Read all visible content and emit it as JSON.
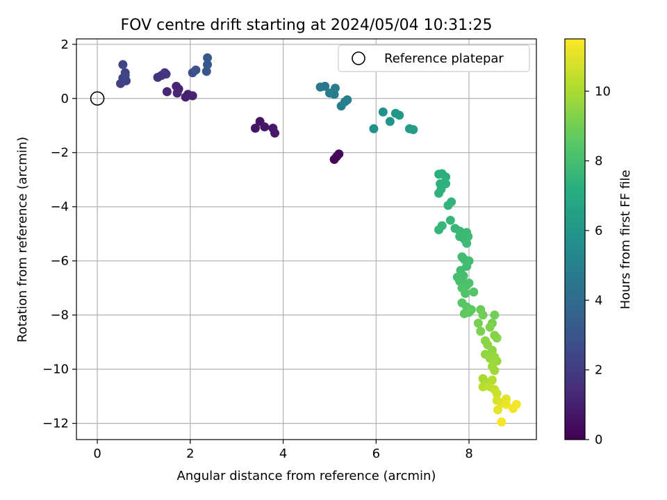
{
  "chart_data": {
    "type": "scatter",
    "title": "FOV centre drift starting at 2024/05/04 10:31:25",
    "xlabel": "Angular distance from reference (arcmin)",
    "ylabel": "Rotation from reference (arcmin)",
    "xlim": [
      -0.45,
      9.45
    ],
    "ylim": [
      -12.6,
      2.2
    ],
    "xticks": [
      0,
      2,
      4,
      6,
      8
    ],
    "yticks": [
      2,
      0,
      -2,
      -4,
      -6,
      -8,
      -10,
      -12
    ],
    "xtick_labels": [
      "0",
      "2",
      "4",
      "6",
      "8"
    ],
    "ytick_labels": [
      "2",
      "0",
      "−2",
      "−4",
      "−6",
      "−8",
      "−10",
      "−12"
    ],
    "grid": true,
    "legend": {
      "position": "top-right",
      "entries": [
        "Reference platepar"
      ]
    },
    "reference_point": {
      "x": 0,
      "y": 0
    },
    "colorbar": {
      "label": "Hours from first FF file",
      "colormap": "viridis",
      "range": [
        0,
        11.5
      ],
      "ticks": [
        0,
        2,
        4,
        6,
        8,
        10
      ],
      "tick_labels": [
        "0",
        "2",
        "4",
        "6",
        "8",
        "10"
      ]
    },
    "points": [
      {
        "x": 5.1,
        "y": -2.25,
        "t": 0.1
      },
      {
        "x": 5.15,
        "y": -2.15,
        "t": 0.15
      },
      {
        "x": 5.2,
        "y": -2.05,
        "t": 0.2
      },
      {
        "x": 3.4,
        "y": -1.1,
        "t": 0.6
      },
      {
        "x": 3.5,
        "y": -0.85,
        "t": 0.65
      },
      {
        "x": 3.6,
        "y": -1.05,
        "t": 0.7
      },
      {
        "x": 3.78,
        "y": -1.1,
        "t": 0.75
      },
      {
        "x": 3.82,
        "y": -1.28,
        "t": 0.8
      },
      {
        "x": 1.9,
        "y": 0.05,
        "t": 1.0
      },
      {
        "x": 1.95,
        "y": 0.15,
        "t": 1.05
      },
      {
        "x": 2.05,
        "y": 0.1,
        "t": 1.1
      },
      {
        "x": 1.75,
        "y": 0.35,
        "t": 1.15
      },
      {
        "x": 1.7,
        "y": 0.45,
        "t": 1.2
      },
      {
        "x": 1.72,
        "y": 0.2,
        "t": 1.25
      },
      {
        "x": 1.5,
        "y": 0.25,
        "t": 1.3
      },
      {
        "x": 1.3,
        "y": 0.78,
        "t": 1.7
      },
      {
        "x": 1.38,
        "y": 0.85,
        "t": 1.75
      },
      {
        "x": 1.45,
        "y": 0.95,
        "t": 1.8
      },
      {
        "x": 1.48,
        "y": 0.9,
        "t": 1.85
      },
      {
        "x": 0.5,
        "y": 0.55,
        "t": 2.2
      },
      {
        "x": 0.55,
        "y": 0.75,
        "t": 2.25
      },
      {
        "x": 0.6,
        "y": 0.95,
        "t": 2.3
      },
      {
        "x": 0.62,
        "y": 0.65,
        "t": 2.35
      },
      {
        "x": 0.55,
        "y": 1.25,
        "t": 2.4
      },
      {
        "x": 0.6,
        "y": 0.85,
        "t": 2.45
      },
      {
        "x": 2.05,
        "y": 0.95,
        "t": 2.8
      },
      {
        "x": 2.12,
        "y": 1.05,
        "t": 2.9
      },
      {
        "x": 2.35,
        "y": 1.0,
        "t": 3.1
      },
      {
        "x": 2.37,
        "y": 1.25,
        "t": 3.15
      },
      {
        "x": 2.37,
        "y": 1.5,
        "t": 3.2
      },
      {
        "x": 4.8,
        "y": 0.42,
        "t": 4.6
      },
      {
        "x": 4.9,
        "y": 0.45,
        "t": 4.7
      },
      {
        "x": 5.0,
        "y": 0.2,
        "t": 4.8
      },
      {
        "x": 5.1,
        "y": 0.15,
        "t": 4.85
      },
      {
        "x": 5.12,
        "y": 0.38,
        "t": 4.9
      },
      {
        "x": 5.25,
        "y": -0.28,
        "t": 4.95
      },
      {
        "x": 5.33,
        "y": -0.12,
        "t": 5.0
      },
      {
        "x": 5.38,
        "y": -0.05,
        "t": 5.05
      },
      {
        "x": 5.95,
        "y": -1.12,
        "t": 5.8
      },
      {
        "x": 6.15,
        "y": -0.5,
        "t": 5.9
      },
      {
        "x": 6.3,
        "y": -0.85,
        "t": 6.0
      },
      {
        "x": 6.42,
        "y": -0.55,
        "t": 6.1
      },
      {
        "x": 6.5,
        "y": -0.62,
        "t": 6.15
      },
      {
        "x": 6.72,
        "y": -1.12,
        "t": 6.3
      },
      {
        "x": 6.8,
        "y": -1.15,
        "t": 6.35
      },
      {
        "x": 7.35,
        "y": -2.8,
        "t": 7.3
      },
      {
        "x": 7.42,
        "y": -2.78,
        "t": 7.32
      },
      {
        "x": 7.5,
        "y": -2.9,
        "t": 7.34
      },
      {
        "x": 7.38,
        "y": -3.15,
        "t": 7.36
      },
      {
        "x": 7.5,
        "y": -3.15,
        "t": 7.38
      },
      {
        "x": 7.4,
        "y": -3.35,
        "t": 7.4
      },
      {
        "x": 7.35,
        "y": -3.5,
        "t": 7.42
      },
      {
        "x": 7.55,
        "y": -3.95,
        "t": 7.5
      },
      {
        "x": 7.62,
        "y": -3.82,
        "t": 7.52
      },
      {
        "x": 7.42,
        "y": -4.7,
        "t": 7.6
      },
      {
        "x": 7.35,
        "y": -4.85,
        "t": 7.62
      },
      {
        "x": 7.6,
        "y": -4.5,
        "t": 7.64
      },
      {
        "x": 7.7,
        "y": -4.8,
        "t": 7.7
      },
      {
        "x": 7.8,
        "y": -4.9,
        "t": 7.72
      },
      {
        "x": 7.85,
        "y": -5.0,
        "t": 7.74
      },
      {
        "x": 7.8,
        "y": -5.1,
        "t": 7.76
      },
      {
        "x": 7.9,
        "y": -5.2,
        "t": 7.78
      },
      {
        "x": 7.95,
        "y": -4.95,
        "t": 7.8
      },
      {
        "x": 7.98,
        "y": -5.1,
        "t": 7.82
      },
      {
        "x": 7.95,
        "y": -5.35,
        "t": 7.84
      },
      {
        "x": 7.85,
        "y": -5.85,
        "t": 7.9
      },
      {
        "x": 7.9,
        "y": -5.95,
        "t": 7.92
      },
      {
        "x": 8.0,
        "y": -6.0,
        "t": 7.94
      },
      {
        "x": 7.95,
        "y": -6.2,
        "t": 7.96
      },
      {
        "x": 7.82,
        "y": -6.35,
        "t": 7.98
      },
      {
        "x": 7.88,
        "y": -6.55,
        "t": 8.0
      },
      {
        "x": 7.75,
        "y": -6.6,
        "t": 8.05
      },
      {
        "x": 7.8,
        "y": -6.75,
        "t": 8.1
      },
      {
        "x": 7.9,
        "y": -6.85,
        "t": 8.15
      },
      {
        "x": 7.95,
        "y": -6.9,
        "t": 8.2
      },
      {
        "x": 8.0,
        "y": -6.82,
        "t": 8.25
      },
      {
        "x": 7.85,
        "y": -7.0,
        "t": 8.3
      },
      {
        "x": 7.92,
        "y": -7.2,
        "t": 8.35
      },
      {
        "x": 8.1,
        "y": -7.15,
        "t": 8.4
      },
      {
        "x": 7.85,
        "y": -7.55,
        "t": 8.5
      },
      {
        "x": 7.95,
        "y": -7.7,
        "t": 8.55
      },
      {
        "x": 8.05,
        "y": -7.8,
        "t": 8.6
      },
      {
        "x": 7.9,
        "y": -7.95,
        "t": 8.65
      },
      {
        "x": 8.0,
        "y": -7.9,
        "t": 8.7
      },
      {
        "x": 8.25,
        "y": -7.8,
        "t": 8.9
      },
      {
        "x": 8.3,
        "y": -8.0,
        "t": 9.0
      },
      {
        "x": 8.55,
        "y": -8.0,
        "t": 9.05
      },
      {
        "x": 8.5,
        "y": -8.3,
        "t": 9.1
      },
      {
        "x": 8.2,
        "y": -8.3,
        "t": 9.15
      },
      {
        "x": 8.25,
        "y": -8.6,
        "t": 9.2
      },
      {
        "x": 8.45,
        "y": -8.45,
        "t": 9.3
      },
      {
        "x": 8.55,
        "y": -8.75,
        "t": 9.35
      },
      {
        "x": 8.6,
        "y": -8.85,
        "t": 9.4
      },
      {
        "x": 8.35,
        "y": -8.95,
        "t": 9.45
      },
      {
        "x": 8.4,
        "y": -9.1,
        "t": 9.5
      },
      {
        "x": 8.5,
        "y": -9.3,
        "t": 9.55
      },
      {
        "x": 8.35,
        "y": -9.45,
        "t": 9.6
      },
      {
        "x": 8.45,
        "y": -9.6,
        "t": 9.65
      },
      {
        "x": 8.55,
        "y": -9.55,
        "t": 9.7
      },
      {
        "x": 8.6,
        "y": -9.7,
        "t": 9.75
      },
      {
        "x": 8.5,
        "y": -9.9,
        "t": 9.8
      },
      {
        "x": 8.55,
        "y": -10.05,
        "t": 9.85
      },
      {
        "x": 8.3,
        "y": -10.35,
        "t": 10.0
      },
      {
        "x": 8.4,
        "y": -10.5,
        "t": 10.1
      },
      {
        "x": 8.5,
        "y": -10.4,
        "t": 10.2
      },
      {
        "x": 8.3,
        "y": -10.65,
        "t": 10.3
      },
      {
        "x": 8.45,
        "y": -10.65,
        "t": 10.4
      },
      {
        "x": 8.55,
        "y": -10.75,
        "t": 10.5
      },
      {
        "x": 8.6,
        "y": -10.9,
        "t": 10.6
      },
      {
        "x": 8.6,
        "y": -11.15,
        "t": 10.8
      },
      {
        "x": 8.7,
        "y": -11.25,
        "t": 10.9
      },
      {
        "x": 8.8,
        "y": -11.1,
        "t": 11.0
      },
      {
        "x": 8.62,
        "y": -11.5,
        "t": 11.1
      },
      {
        "x": 8.8,
        "y": -11.3,
        "t": 11.2
      },
      {
        "x": 8.95,
        "y": -11.45,
        "t": 11.3
      },
      {
        "x": 9.02,
        "y": -11.3,
        "t": 11.35
      },
      {
        "x": 8.7,
        "y": -11.95,
        "t": 11.4
      }
    ]
  }
}
